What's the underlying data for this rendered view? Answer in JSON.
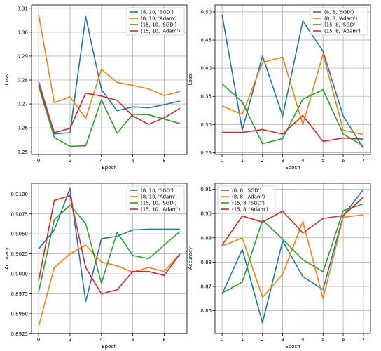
{
  "chart_data": [
    {
      "type": "line",
      "xlabel": "Epoch",
      "ylabel": "Loss",
      "xlim": [
        -0.45,
        9.45
      ],
      "ylim": [
        0.2489,
        0.3114
      ],
      "xticks": [
        0,
        2,
        4,
        6,
        8
      ],
      "yticks": [
        0.25,
        0.26,
        0.27,
        0.28,
        0.29,
        0.3,
        0.31
      ],
      "ytick_labels": [
        "0.25",
        "0.26",
        "0.27",
        "0.28",
        "0.29",
        "0.30",
        "0.31"
      ],
      "grid": true,
      "legend_position": "top-right",
      "x": [
        0,
        1,
        2,
        3,
        4,
        5,
        6,
        7,
        8,
        9
      ],
      "series": [
        {
          "name": "(8, 10, 'SGD')",
          "color": "#1f77b4",
          "values": [
            0.2795,
            0.2575,
            0.258,
            0.3065,
            0.276,
            0.2672,
            0.2688,
            0.2684,
            0.2697,
            0.2712
          ]
        },
        {
          "name": "(8, 10, 'Adam')",
          "color": "#ff7f0e",
          "values": [
            0.3075,
            0.2705,
            0.273,
            0.264,
            0.2845,
            0.279,
            0.2778,
            0.2763,
            0.2735,
            0.2752
          ]
        },
        {
          "name": "(15, 10, 'SGD')",
          "color": "#2ca02c",
          "values": [
            0.2775,
            0.256,
            0.2523,
            0.2525,
            0.2718,
            0.2578,
            0.2657,
            0.2655,
            0.2637,
            0.2618
          ]
        },
        {
          "name": "(15, 10, 'Adam')",
          "color": "#d62728",
          "values": [
            0.2785,
            0.258,
            0.2598,
            0.2745,
            0.2733,
            0.2715,
            0.265,
            0.2615,
            0.2642,
            0.2682
          ]
        }
      ]
    },
    {
      "type": "line",
      "xlabel": "Epoch",
      "ylabel": "Loss",
      "xlim": [
        -0.35,
        7.35
      ],
      "ylim": [
        0.2468,
        0.5124
      ],
      "xticks": [
        0,
        1,
        2,
        3,
        4,
        5,
        6,
        7
      ],
      "yticks": [
        0.25,
        0.3,
        0.35,
        0.4,
        0.45,
        0.5
      ],
      "ytick_labels": [
        "0.25",
        "0.30",
        "0.35",
        "0.40",
        "0.45",
        "0.50"
      ],
      "grid": true,
      "legend_position": "top-right",
      "x": [
        0,
        1,
        2,
        3,
        4,
        5,
        6,
        7
      ],
      "series": [
        {
          "name": "(8, 8, 'SGD')",
          "color": "#1f77b4",
          "values": [
            0.495,
            0.29,
            0.422,
            0.315,
            0.484,
            0.43,
            0.315,
            0.258
          ]
        },
        {
          "name": "(8, 8, 'Adam')",
          "color": "#ff7f0e",
          "values": [
            0.333,
            0.318,
            0.41,
            0.42,
            0.3,
            0.425,
            0.29,
            0.282
          ]
        },
        {
          "name": "(15, 8, 'SGD')",
          "color": "#2ca02c",
          "values": [
            0.372,
            0.34,
            0.266,
            0.275,
            0.345,
            0.362,
            0.283,
            0.262
          ]
        },
        {
          "name": "(15, 8, 'Adam')",
          "color": "#d62728",
          "values": [
            0.286,
            0.286,
            0.291,
            0.283,
            0.316,
            0.27,
            0.276,
            0.274
          ]
        }
      ]
    },
    {
      "type": "line",
      "xlabel": "Epoch",
      "ylabel": "Accuracy",
      "xlim": [
        -0.45,
        9.45
      ],
      "ylim": [
        0.89253,
        0.91135
      ],
      "xticks": [
        0,
        2,
        4,
        6,
        8
      ],
      "yticks": [
        0.8925,
        0.895,
        0.8975,
        0.9,
        0.9025,
        0.905,
        0.9075,
        0.91
      ],
      "ytick_labels": [
        "0.8925",
        "0.8950",
        "0.8975",
        "0.9000",
        "0.9025",
        "0.9050",
        "0.9075",
        "0.9100"
      ],
      "grid": true,
      "legend_position": "top-right",
      "x": [
        0,
        1,
        2,
        3,
        4,
        5,
        6,
        7,
        8,
        9
      ],
      "series": [
        {
          "name": "(8, 10, 'SGD')",
          "color": "#1f77b4",
          "values": [
            0.9031,
            0.9055,
            0.9107,
            0.8965,
            0.9044,
            0.9047,
            0.9055,
            0.9056,
            0.9056,
            0.9056
          ]
        },
        {
          "name": "(8, 10, 'Adam')",
          "color": "#ff7f0e",
          "values": [
            0.8934,
            0.9008,
            0.9025,
            0.9036,
            0.9015,
            0.901,
            0.9002,
            0.9008,
            0.9003,
            0.9025
          ]
        },
        {
          "name": "(15, 10, 'SGD')",
          "color": "#2ca02c",
          "values": [
            0.8977,
            0.9068,
            0.9086,
            0.9063,
            0.8988,
            0.9052,
            0.9023,
            0.9019,
            0.9036,
            0.9053
          ]
        },
        {
          "name": "(15, 10, 'Adam')",
          "color": "#d62728",
          "values": [
            0.8991,
            0.9092,
            0.9098,
            0.9008,
            0.8975,
            0.898,
            0.9003,
            0.9003,
            0.8998,
            0.9025
          ]
        }
      ]
    },
    {
      "type": "line",
      "xlabel": "Epoch",
      "ylabel": "Accuracy",
      "xlim": [
        -0.35,
        7.35
      ],
      "ylim": [
        0.8506,
        0.9125
      ],
      "xticks": [
        0,
        1,
        2,
        3,
        4,
        5,
        6,
        7
      ],
      "yticks": [
        0.86,
        0.87,
        0.88,
        0.89,
        0.9,
        0.91
      ],
      "ytick_labels": [
        "0.86",
        "0.87",
        "0.88",
        "0.89",
        "0.90",
        "0.91"
      ],
      "grid": true,
      "legend_position": "top-left",
      "x": [
        0,
        1,
        2,
        3,
        4,
        5,
        6,
        7
      ],
      "series": [
        {
          "name": "(8, 8, 'SGD')",
          "color": "#1f77b4",
          "values": [
            0.8668,
            0.8853,
            0.855,
            0.8887,
            0.874,
            0.8687,
            0.899,
            0.91
          ]
        },
        {
          "name": "(8, 8, 'Adam')",
          "color": "#ff7f0e",
          "values": [
            0.8866,
            0.89,
            0.8655,
            0.875,
            0.8968,
            0.865,
            0.8985,
            0.8995
          ]
        },
        {
          "name": "(15, 8, 'SGD')",
          "color": "#2ca02c",
          "values": [
            0.8672,
            0.8718,
            0.8973,
            0.8895,
            0.881,
            0.876,
            0.9012,
            0.904
          ]
        },
        {
          "name": "(15, 8, 'Adam')",
          "color": "#d62728",
          "values": [
            0.887,
            0.899,
            0.8965,
            0.901,
            0.892,
            0.898,
            0.8992,
            0.9068
          ]
        }
      ]
    }
  ]
}
